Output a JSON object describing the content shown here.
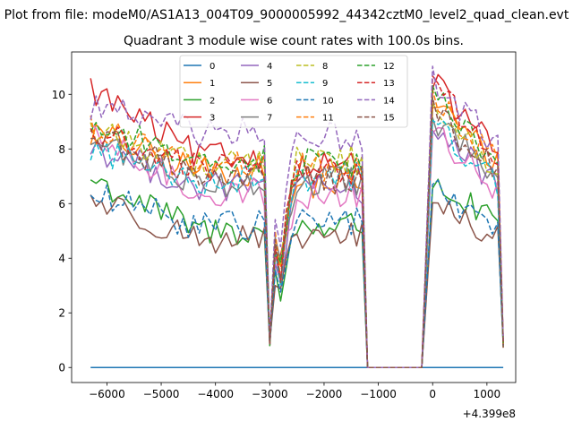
{
  "figure": {
    "suptitle": "Plot from file: modeM0/AS1A13_004T09_9000005992_44342cztM0_level2_quad_clean.evt",
    "title": "Quadrant 3 module wise count rates with 100.0s bins."
  },
  "chart_data": {
    "type": "line",
    "offset_label": "+4.399e8",
    "xlim": [
      -6650,
      1530
    ],
    "ylim": [
      -0.55,
      11.55
    ],
    "x_ticks": [
      -6000,
      -5000,
      -4000,
      -3000,
      -2000,
      -1000,
      0,
      1000
    ],
    "x_tick_labels": [
      "−6000",
      "−5000",
      "−4000",
      "−3000",
      "−2000",
      "−1000",
      "0",
      "1000"
    ],
    "y_ticks": [
      0,
      2,
      4,
      6,
      8,
      10
    ],
    "y_tick_labels": [
      "0",
      "2",
      "4",
      "6",
      "8",
      "10"
    ],
    "segments": [
      [
        -6300,
        -3100
      ],
      [
        -3000,
        -1300
      ],
      [
        -1200,
        -200
      ],
      [
        0,
        1300
      ]
    ],
    "legend_placement": "top-center",
    "legend_columns": 4,
    "series": [
      {
        "name": "0",
        "color": "#1f77b4",
        "dash": false,
        "a": 0.0,
        "b": 0.0,
        "c": 0.0,
        "d": 0.0
      },
      {
        "name": "1",
        "color": "#ff7f0e",
        "dash": false,
        "a": 8.6,
        "b": 7.2,
        "c": 6.7,
        "d": 9.8
      },
      {
        "name": "2",
        "color": "#2ca02c",
        "dash": false,
        "a": 6.9,
        "b": 5.0,
        "c": 5.2,
        "d": 6.8
      },
      {
        "name": "3",
        "color": "#d62728",
        "dash": false,
        "a": 10.2,
        "b": 7.7,
        "c": 7.4,
        "d": 10.4
      },
      {
        "name": "4",
        "color": "#9467bd",
        "dash": false,
        "a": 8.1,
        "b": 6.6,
        "c": 6.5,
        "d": 8.8
      },
      {
        "name": "5",
        "color": "#8c564b",
        "dash": false,
        "a": 6.2,
        "b": 4.7,
        "c": 4.8,
        "d": 6.1
      },
      {
        "name": "6",
        "color": "#e377c2",
        "dash": false,
        "a": 8.4,
        "b": 6.4,
        "c": 6.3,
        "d": 8.6
      },
      {
        "name": "7",
        "color": "#7f7f7f",
        "dash": false,
        "a": 8.3,
        "b": 6.8,
        "c": 6.8,
        "d": 9.1
      },
      {
        "name": "8",
        "color": "#bcbd22",
        "dash": true,
        "a": 8.7,
        "b": 7.5,
        "c": 7.6,
        "d": 9.6
      },
      {
        "name": "9",
        "color": "#17becf",
        "dash": true,
        "a": 8.0,
        "b": 6.9,
        "c": 7.0,
        "d": 8.9
      },
      {
        "name": "10",
        "color": "#1f77b4",
        "dash": true,
        "a": 6.3,
        "b": 5.2,
        "c": 5.4,
        "d": 6.5
      },
      {
        "name": "11",
        "color": "#ff7f0e",
        "dash": true,
        "a": 8.8,
        "b": 7.4,
        "c": 7.3,
        "d": 9.9
      },
      {
        "name": "12",
        "color": "#2ca02c",
        "dash": true,
        "a": 8.9,
        "b": 7.6,
        "c": 7.5,
        "d": 10.0
      },
      {
        "name": "13",
        "color": "#d62728",
        "dash": true,
        "a": 8.6,
        "b": 7.3,
        "c": 7.2,
        "d": 10.3
      },
      {
        "name": "14",
        "color": "#9467bd",
        "dash": true,
        "a": 9.6,
        "b": 8.6,
        "c": 8.5,
        "d": 10.6
      },
      {
        "name": "15",
        "color": "#8c564b",
        "dash": true,
        "a": 8.5,
        "b": 7.0,
        "c": 6.9,
        "d": 9.4
      }
    ]
  }
}
